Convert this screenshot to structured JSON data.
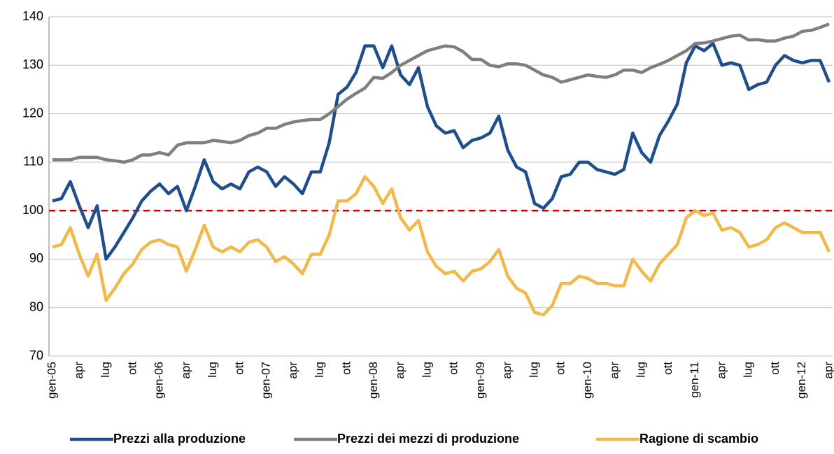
{
  "chart_data": {
    "type": "line",
    "categories": [
      "gen-05",
      null,
      null,
      "apr",
      null,
      null,
      "lug",
      null,
      null,
      "ott",
      null,
      null,
      "gen-06",
      null,
      null,
      "apr",
      null,
      null,
      "lug",
      null,
      null,
      "ott",
      null,
      null,
      "gen-07",
      null,
      null,
      "apr",
      null,
      null,
      "lug",
      null,
      null,
      "ott",
      null,
      null,
      "gen-08",
      null,
      null,
      "apr",
      null,
      null,
      "lug",
      null,
      null,
      "ott",
      null,
      null,
      "gen-09",
      null,
      null,
      "apr",
      null,
      null,
      "lug",
      null,
      null,
      "ott",
      null,
      null,
      "gen-10",
      null,
      null,
      "apr",
      null,
      null,
      "lug",
      null,
      null,
      "ott",
      null,
      null,
      "gen-11",
      null,
      null,
      "apr",
      null,
      null,
      "lug",
      null,
      null,
      "ott",
      null,
      null,
      "gen-12",
      null,
      null,
      "apr"
    ],
    "series": [
      {
        "name": "Prezzi alla produzione",
        "color": "#1f4e8c",
        "values": [
          102,
          102.5,
          106,
          101,
          96.5,
          101,
          90,
          92.5,
          95.5,
          98.5,
          102,
          104,
          105.5,
          103.5,
          105,
          100,
          105,
          110.5,
          106,
          104.5,
          105.5,
          104.5,
          108,
          109,
          108,
          105,
          107,
          105.5,
          103.5,
          108,
          108,
          114,
          124,
          125.5,
          128.5,
          134,
          134,
          129.5,
          134,
          128,
          126,
          129.5,
          121.5,
          117.5,
          116,
          116.5,
          113,
          114.5,
          115,
          116,
          119.5,
          112.5,
          109,
          108,
          101.5,
          100.5,
          102.5,
          107,
          107.5,
          110,
          110,
          108.5,
          108,
          107.5,
          108.5,
          116,
          112,
          110,
          115.5,
          118.5,
          122,
          130.5,
          134,
          133,
          134.5,
          130,
          130.5,
          130,
          125,
          126,
          126.5,
          130,
          132,
          131,
          130.5,
          131,
          131,
          126.5
        ]
      },
      {
        "name": "Prezzi dei mezzi di produzione",
        "color": "#7f7f7f",
        "values": [
          110.5,
          110.5,
          110.5,
          111,
          111,
          111,
          110.5,
          110.3,
          110,
          110.5,
          111.5,
          111.5,
          112,
          111.5,
          113.5,
          114,
          114,
          114,
          114.5,
          114.3,
          114,
          114.5,
          115.5,
          116,
          117,
          117,
          117.8,
          118.3,
          118.6,
          118.8,
          118.8,
          120,
          121.5,
          123,
          124.2,
          125.3,
          127.5,
          127.3,
          128.5,
          130,
          131,
          132,
          133,
          133.5,
          134,
          133.8,
          132.8,
          131.2,
          131.2,
          130,
          129.7,
          130.3,
          130.3,
          130,
          129,
          128,
          127.5,
          126.5,
          127,
          127.5,
          128,
          127.7,
          127.5,
          128,
          129,
          129,
          128.5,
          129.5,
          130.2,
          131,
          132,
          133,
          134.5,
          134.6,
          135,
          135.5,
          136,
          136.2,
          135.2,
          135.3,
          135,
          135,
          135.6,
          136,
          137,
          137.2,
          137.8,
          138.5
        ]
      },
      {
        "name": "Ragione di scambio",
        "color": "#f0b94a",
        "values": [
          92.5,
          93,
          96.5,
          91,
          86.5,
          91,
          81.5,
          84,
          87,
          89,
          92,
          93.5,
          94,
          93,
          92.5,
          87.5,
          92,
          97,
          92.5,
          91.5,
          92.5,
          91.5,
          93.5,
          94,
          92.5,
          89.5,
          90.5,
          89,
          87,
          91,
          91,
          95,
          102,
          102,
          103.5,
          107,
          105,
          101.5,
          104.5,
          98.5,
          96,
          98,
          91.5,
          88.5,
          87,
          87.5,
          85.5,
          87.5,
          88,
          89.5,
          92,
          86.5,
          84,
          83,
          79,
          78.5,
          80.5,
          85,
          85,
          86.5,
          86,
          85,
          85,
          84.5,
          84.5,
          90,
          87.5,
          85.5,
          89,
          91,
          93,
          98.5,
          100,
          99,
          99.5,
          96,
          96.5,
          95.5,
          92.5,
          93,
          94,
          96.5,
          97.5,
          96.5,
          95.5,
          95.5,
          95.5,
          91.5
        ]
      }
    ],
    "reference_line": {
      "value": 100,
      "color": "#c00000"
    },
    "ylim": [
      70,
      140
    ],
    "yticks": [
      70,
      80,
      90,
      100,
      110,
      120,
      130,
      140
    ],
    "grid": true,
    "legend": "bottom"
  }
}
